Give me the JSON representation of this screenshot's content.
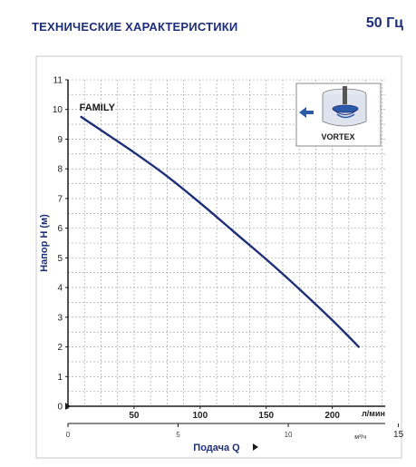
{
  "header": {
    "title": "ТЕХНИЧЕСКИЕ ХАРАКТЕРИСТИКИ",
    "frequency": "50 Гц"
  },
  "inset": {
    "label": "VORTEX",
    "icon": "vortex-impeller-icon"
  },
  "chart_data": {
    "type": "line",
    "ylabel": "Напор H  (м)",
    "xlabel": "Подача Q",
    "x_unit": "л/мин",
    "x2_unit": "м³/ч",
    "xlim": [
      0,
      240
    ],
    "ylim": [
      0,
      11
    ],
    "xticks": [
      0,
      50,
      100,
      150,
      200
    ],
    "x2ticks": [
      {
        "label": "0",
        "value": 0
      },
      {
        "label": "5",
        "value": 83.33
      },
      {
        "label": "10",
        "value": 166.67
      },
      {
        "label": "15",
        "value": 250
      }
    ],
    "yticks": [
      0,
      1,
      2,
      3,
      4,
      5,
      6,
      7,
      8,
      9,
      10,
      11
    ],
    "grid": true,
    "series": [
      {
        "name": "FAMILY",
        "x": [
          10,
          25,
          50,
          75,
          100,
          125,
          150,
          175,
          200,
          220
        ],
        "y": [
          9.75,
          9.3,
          8.55,
          7.75,
          6.85,
          5.9,
          4.95,
          3.95,
          2.9,
          2.0
        ]
      }
    ],
    "colors": {
      "line": "#1e2f7a",
      "grid": "#9a9a9a",
      "axis": "#1a1a1a",
      "arrow": "#2b5ba8"
    }
  }
}
